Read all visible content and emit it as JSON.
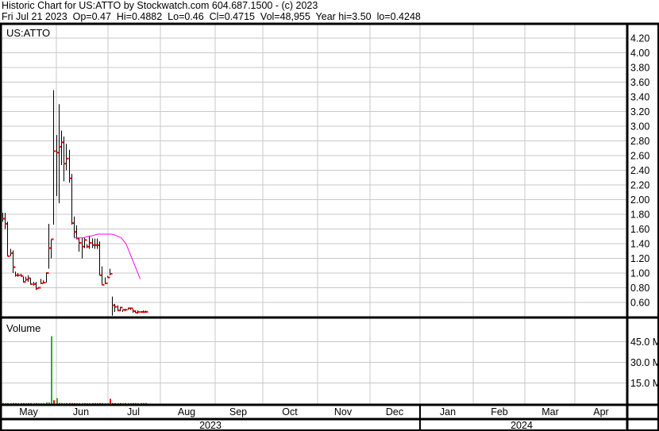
{
  "header": {
    "line1": "Historic Chart for US:ATTO by Stockwatch.com 604.687.1500 - (c) 2023",
    "line2": "Fri Jul 21 2023  Op=0.47  Hi=0.4882  Lo=0.46  Cl=0.4715  Vol=48,955  Year hi=3.50  lo=0.4248"
  },
  "colors": {
    "bar": "#000000",
    "close_tick": "#ff0000",
    "moving_average": "#ff00ff",
    "volume_up": "#33aa33",
    "volume_down": "#ff0000",
    "grid": "#c8c8c8"
  },
  "chart_data": [
    {
      "type": "ohlc",
      "title": "US:ATTO",
      "ylim": [
        0.4,
        4.3
      ],
      "yticks": [
        "0.60",
        "0.80",
        "1.00",
        "1.20",
        "1.40",
        "1.60",
        "1.80",
        "2.00",
        "2.20",
        "2.40",
        "2.60",
        "2.80",
        "3.00",
        "3.20",
        "3.40",
        "3.60",
        "3.80",
        "4.00",
        "4.20"
      ],
      "grid": true,
      "bars_hlc": [
        [
          1.82,
          1.7,
          1.74
        ],
        [
          1.82,
          1.6,
          1.67
        ],
        [
          1.7,
          1.23,
          1.23
        ],
        [
          1.33,
          1.23,
          1.27
        ],
        [
          1.31,
          1.0,
          1.08
        ],
        [
          1.02,
          0.95,
          0.97
        ],
        [
          1.0,
          0.95,
          0.97
        ],
        [
          0.99,
          0.95,
          0.96
        ],
        [
          0.95,
          0.87,
          0.88
        ],
        [
          0.95,
          0.89,
          0.91
        ],
        [
          0.97,
          0.88,
          0.93
        ],
        [
          0.93,
          0.84,
          0.85
        ],
        [
          0.88,
          0.83,
          0.85
        ],
        [
          0.88,
          0.77,
          0.79
        ],
        [
          0.81,
          0.79,
          0.8
        ],
        [
          0.92,
          0.85,
          0.86
        ],
        [
          0.9,
          0.86,
          0.87
        ],
        [
          1.01,
          0.87,
          1.0
        ],
        [
          1.67,
          1.06,
          1.34
        ],
        [
          1.46,
          1.2,
          1.46
        ],
        [
          3.49,
          1.66,
          2.66
        ],
        [
          2.88,
          2.05,
          2.64
        ],
        [
          3.3,
          1.95,
          2.72
        ],
        [
          2.94,
          2.47,
          2.78
        ],
        [
          2.86,
          2.25,
          2.49
        ],
        [
          2.76,
          2.4,
          2.56
        ],
        [
          2.68,
          2.23,
          2.29
        ],
        [
          2.35,
          1.66,
          1.68
        ],
        [
          1.77,
          1.48,
          1.56
        ],
        [
          1.65,
          1.46,
          1.47
        ],
        [
          1.48,
          1.29,
          1.41
        ],
        [
          1.48,
          1.2,
          1.36
        ],
        [
          1.48,
          1.34,
          1.45
        ],
        [
          1.39,
          1.34,
          1.36
        ],
        [
          1.5,
          1.33,
          1.41
        ],
        [
          1.47,
          1.34,
          1.38
        ],
        [
          1.47,
          1.33,
          1.38
        ],
        [
          1.47,
          1.33,
          1.38
        ],
        [
          1.43,
          0.97,
          0.97
        ],
        [
          1.09,
          0.84,
          0.84
        ],
        [
          0.94,
          0.85,
          0.86
        ],
        [
          0.96,
          0.94,
          0.94
        ],
        [
          1.06,
          0.97,
          0.99
        ],
        [
          0.68,
          0.42,
          0.56
        ],
        [
          0.58,
          0.47,
          0.54
        ],
        [
          0.56,
          0.48,
          0.49
        ],
        [
          0.54,
          0.48,
          0.53
        ],
        [
          0.5,
          0.47,
          0.5
        ],
        [
          0.5,
          0.48,
          0.5
        ],
        [
          0.53,
          0.5,
          0.52
        ],
        [
          0.53,
          0.5,
          0.52
        ],
        [
          0.51,
          0.46,
          0.48
        ],
        [
          0.49,
          0.46,
          0.46
        ],
        [
          0.49,
          0.45,
          0.47
        ],
        [
          0.48,
          0.46,
          0.47
        ],
        [
          0.49,
          0.46,
          0.47
        ],
        [
          0.4882,
          0.46,
          0.4715
        ]
      ],
      "moving_average": [
        1.48,
        1.48,
        1.48,
        1.5,
        1.51,
        1.53,
        1.53,
        1.53,
        1.53,
        1.51,
        1.48,
        1.4,
        1.24,
        1.08,
        0.92
      ]
    },
    {
      "type": "bar",
      "title": "Volume",
      "ylim": [
        0,
        52000000
      ],
      "yticks": [
        "15.0 M",
        "30.0 M",
        "45.0 M"
      ],
      "values": [
        400000,
        400000,
        400000,
        400000,
        400000,
        400000,
        400000,
        400000,
        400000,
        400000,
        400000,
        400000,
        400000,
        400000,
        400000,
        400000,
        400000,
        900000,
        900000,
        49000000,
        2500000,
        4000000,
        400000,
        400000,
        400000,
        400000,
        400000,
        400000,
        400000,
        400000,
        400000,
        400000,
        400000,
        400000,
        400000,
        400000,
        400000,
        400000,
        400000,
        400000,
        400000,
        400000,
        3500000,
        400000,
        400000,
        400000,
        400000,
        400000,
        400000,
        400000,
        400000,
        400000,
        400000,
        400000,
        400000,
        400000,
        400000
      ],
      "up": [
        false,
        true,
        false,
        true,
        false,
        false,
        true,
        false,
        false,
        true,
        false,
        false,
        true,
        false,
        true,
        true,
        true,
        true,
        true,
        true,
        false,
        true,
        false,
        false,
        true,
        false,
        false,
        false,
        false,
        true,
        true,
        true,
        false,
        true,
        true,
        false,
        false,
        true,
        false,
        false,
        true,
        true,
        false,
        false,
        false,
        true,
        false,
        true,
        false,
        true,
        true,
        false,
        false,
        true,
        false,
        false,
        false
      ]
    }
  ],
  "xaxis": {
    "months": [
      "May",
      "Jun",
      "Jul",
      "Aug",
      "Sep",
      "Oct",
      "Nov",
      "Dec",
      "Jan",
      "Feb",
      "Mar",
      "Apr"
    ],
    "years": [
      "2023",
      "2024"
    ]
  }
}
